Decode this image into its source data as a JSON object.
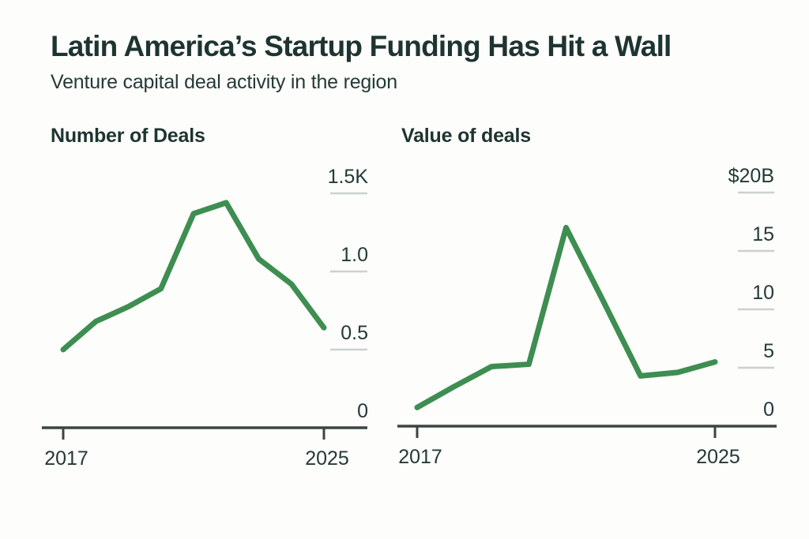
{
  "header": {
    "title": "Latin America’s Startup Funding Has Hit a Wall",
    "subtitle": "Venture capital deal activity in the region"
  },
  "colors": {
    "background": "#fdfdfc",
    "title_text": "#1e3430",
    "body_text": "#243b36",
    "axis_label_text": "#233a35",
    "line": "#3e8e52",
    "y_tick_line": "#cbd1ce",
    "axis_line": "#3a4542"
  },
  "chart_data": [
    {
      "type": "line",
      "title": "Number of Deals",
      "xlabel": "",
      "ylabel": "",
      "x": [
        2017,
        2018,
        2019,
        2020,
        2021,
        2022,
        2023,
        2024,
        2025
      ],
      "series": [
        {
          "name": "Number of deals",
          "values": [
            500,
            680,
            775,
            890,
            1370,
            1440,
            1080,
            920,
            640
          ]
        }
      ],
      "ylim": [
        0,
        1500
      ],
      "y_ticks": [
        {
          "value": 0,
          "label": "0"
        },
        {
          "value": 500,
          "label": "0.5"
        },
        {
          "value": 1000,
          "label": "1.0"
        },
        {
          "value": 1500,
          "label": "1.5K"
        }
      ],
      "x_tick_labels": [
        {
          "x": 2017,
          "label": "2017"
        },
        {
          "x": 2025,
          "label": "2025"
        }
      ],
      "legend": "none",
      "grid": "short right-side tick marks, labels on right"
    },
    {
      "type": "line",
      "title": "Value of deals",
      "xlabel": "",
      "ylabel": "",
      "x": [
        2017,
        2018,
        2019,
        2020,
        2021,
        2022,
        2023,
        2024,
        2025
      ],
      "series": [
        {
          "name": "Value of deals ($B)",
          "values": [
            1.6,
            3.4,
            5.1,
            5.3,
            17,
            10.7,
            4.3,
            4.6,
            5.5
          ]
        }
      ],
      "ylim": [
        0,
        20
      ],
      "y_ticks": [
        {
          "value": 0,
          "label": "0"
        },
        {
          "value": 5,
          "label": "5"
        },
        {
          "value": 10,
          "label": "10"
        },
        {
          "value": 15,
          "label": "15"
        },
        {
          "value": 20,
          "label": "$20B"
        }
      ],
      "x_tick_labels": [
        {
          "x": 2017,
          "label": "2017"
        },
        {
          "x": 2025,
          "label": "2025"
        }
      ],
      "legend": "none",
      "grid": "short right-side tick marks, labels on right"
    }
  ]
}
